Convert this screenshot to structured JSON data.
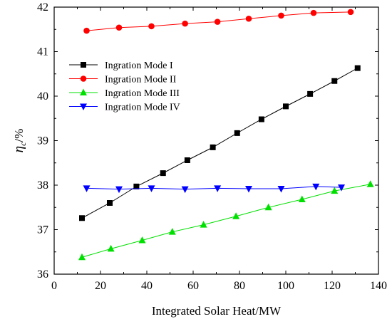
{
  "chart_data": {
    "type": "line",
    "xlabel": "Integrated Solar Heat/MW",
    "ylabel": {
      "symbol": "η",
      "subscript": "c",
      "suffix": "/%"
    },
    "xlim": [
      0,
      140
    ],
    "ylim": [
      36,
      42
    ],
    "xticks": [
      "0",
      "20",
      "40",
      "60",
      "80",
      "100",
      "120",
      "140"
    ],
    "yticks": [
      "36",
      "37",
      "38",
      "39",
      "40",
      "41",
      "42"
    ],
    "grid": false,
    "legend_position": "upper-left",
    "series": [
      {
        "name": "Ingration Mode I",
        "color": "#000000",
        "marker": "square",
        "x": [
          12,
          24,
          35.5,
          47,
          57.5,
          68.5,
          79,
          89.5,
          100,
          110.5,
          121,
          131
        ],
        "y": [
          37.26,
          37.6,
          37.97,
          38.27,
          38.56,
          38.85,
          39.17,
          39.48,
          39.77,
          40.05,
          40.34,
          40.63
        ]
      },
      {
        "name": "Ingration Mode II",
        "color": "#ff0000",
        "marker": "circle",
        "x": [
          14,
          28,
          42,
          56.5,
          70.5,
          84,
          98,
          112,
          128
        ],
        "y": [
          41.47,
          41.54,
          41.57,
          41.63,
          41.67,
          41.74,
          41.81,
          41.87,
          41.89
        ]
      },
      {
        "name": "Ingration Mode III",
        "color": "#00e000",
        "marker": "triangle-up",
        "x": [
          12,
          24.5,
          38,
          51,
          64.5,
          78.5,
          92.5,
          107,
          121,
          136.5
        ],
        "y": [
          36.38,
          36.57,
          36.76,
          36.95,
          37.11,
          37.3,
          37.5,
          37.68,
          37.87,
          38.02
        ]
      },
      {
        "name": "Ingration Mode IV",
        "color": "#0000ff",
        "marker": "triangle-down",
        "x": [
          14,
          28,
          42,
          56.5,
          70.5,
          84,
          98,
          113,
          124
        ],
        "y": [
          37.93,
          37.91,
          37.93,
          37.91,
          37.93,
          37.92,
          37.92,
          37.97,
          37.95
        ]
      }
    ]
  }
}
